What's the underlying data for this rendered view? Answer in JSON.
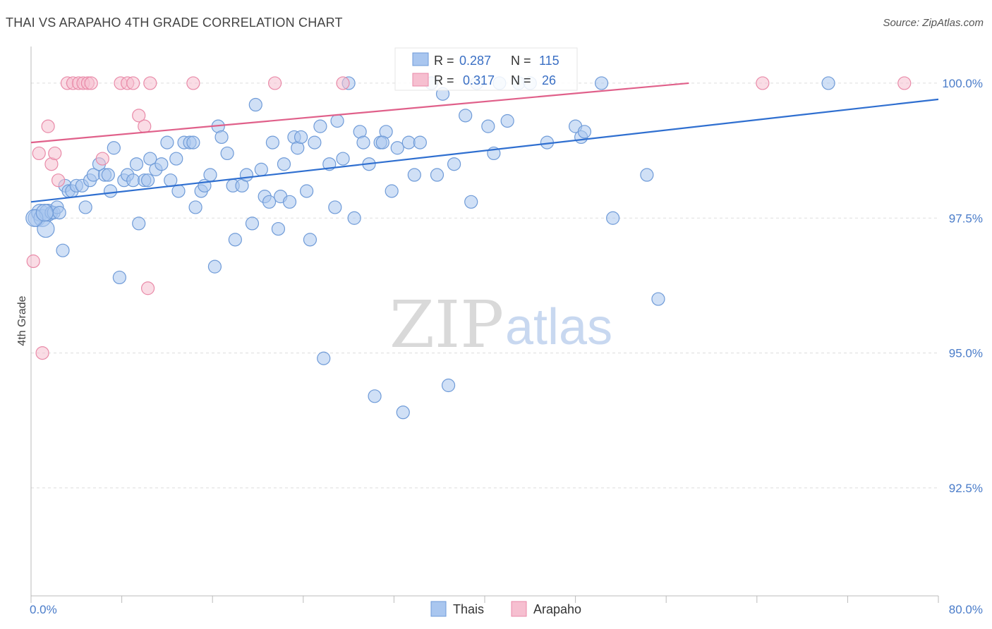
{
  "title": "THAI VS ARAPAHO 4TH GRADE CORRELATION CHART",
  "source": "Source: ZipAtlas.com",
  "watermark": {
    "zip": "ZIP",
    "atlas": "atlas"
  },
  "chart_data": {
    "type": "scatter",
    "xlabel": "",
    "ylabel": "4th Grade",
    "xlim": [
      0,
      80
    ],
    "ylim": [
      90.5,
      100.6
    ],
    "x_tick_labels": [
      {
        "value": 0,
        "label": "0.0%"
      },
      {
        "value": 80,
        "label": "80.0%"
      }
    ],
    "y_ticks": [
      {
        "value": 100.0,
        "label": "100.0%"
      },
      {
        "value": 97.5,
        "label": "97.5%"
      },
      {
        "value": 95.0,
        "label": "95.0%"
      },
      {
        "value": 92.5,
        "label": "92.5%"
      }
    ],
    "grid": true,
    "legend_top": [
      {
        "series": "Thais",
        "r_label": "R =",
        "r": "0.287",
        "n_label": "N =",
        "n": "115"
      },
      {
        "series": "Arapaho",
        "r_label": "R =",
        "r": "0.317",
        "n_label": "N =",
        "n": "26"
      }
    ],
    "legend_bottom": [
      "Thais",
      "Arapaho"
    ],
    "colors": {
      "thais_fill": "#a9c6ef",
      "thais_stroke": "#6f9bd8",
      "thais_line": "#2f6fd0",
      "arapaho_fill": "#f6bfd0",
      "arapaho_stroke": "#e98aa8",
      "arapaho_line": "#e0608a"
    },
    "series": [
      {
        "name": "Thais",
        "trend": {
          "x": [
            0,
            80
          ],
          "y": [
            97.8,
            99.7
          ]
        },
        "points": [
          [
            0.5,
            97.5
          ],
          [
            0.8,
            97.6
          ],
          [
            1.0,
            97.5
          ],
          [
            1.3,
            97.3
          ],
          [
            1.5,
            97.6
          ],
          [
            1.8,
            97.6
          ],
          [
            2.0,
            97.6
          ],
          [
            2.3,
            97.7
          ],
          [
            2.8,
            96.9
          ],
          [
            3.0,
            98.1
          ],
          [
            3.3,
            98.0
          ],
          [
            3.6,
            98.0
          ],
          [
            4.0,
            98.1
          ],
          [
            4.5,
            98.1
          ],
          [
            4.8,
            97.7
          ],
          [
            5.2,
            98.2
          ],
          [
            5.5,
            98.3
          ],
          [
            6.0,
            98.5
          ],
          [
            6.5,
            98.3
          ],
          [
            7.0,
            98.0
          ],
          [
            7.3,
            98.8
          ],
          [
            7.8,
            96.4
          ],
          [
            8.2,
            98.2
          ],
          [
            8.5,
            98.3
          ],
          [
            9.0,
            98.2
          ],
          [
            9.3,
            98.5
          ],
          [
            9.5,
            97.4
          ],
          [
            10.0,
            98.2
          ],
          [
            10.3,
            98.2
          ],
          [
            10.5,
            98.6
          ],
          [
            11.0,
            98.4
          ],
          [
            11.5,
            98.5
          ],
          [
            12.0,
            98.9
          ],
          [
            12.3,
            98.2
          ],
          [
            12.8,
            98.6
          ],
          [
            13.0,
            98.0
          ],
          [
            13.5,
            98.9
          ],
          [
            14.0,
            98.9
          ],
          [
            14.3,
            98.9
          ],
          [
            14.5,
            97.7
          ],
          [
            15.0,
            98.0
          ],
          [
            15.3,
            98.1
          ],
          [
            15.8,
            98.3
          ],
          [
            16.2,
            96.6
          ],
          [
            16.5,
            99.2
          ],
          [
            16.8,
            99.0
          ],
          [
            17.3,
            98.7
          ],
          [
            17.8,
            98.1
          ],
          [
            18.0,
            97.1
          ],
          [
            18.6,
            98.1
          ],
          [
            19.0,
            98.3
          ],
          [
            19.5,
            97.4
          ],
          [
            19.8,
            99.6
          ],
          [
            20.3,
            98.4
          ],
          [
            20.6,
            97.9
          ],
          [
            21.0,
            97.8
          ],
          [
            21.3,
            98.9
          ],
          [
            21.8,
            97.3
          ],
          [
            22.0,
            97.9
          ],
          [
            22.3,
            98.5
          ],
          [
            22.8,
            97.8
          ],
          [
            23.2,
            99.0
          ],
          [
            23.5,
            98.8
          ],
          [
            23.8,
            99.0
          ],
          [
            24.3,
            98.0
          ],
          [
            24.6,
            97.1
          ],
          [
            25.0,
            98.9
          ],
          [
            25.5,
            99.2
          ],
          [
            25.8,
            94.9
          ],
          [
            26.3,
            98.5
          ],
          [
            26.8,
            97.7
          ],
          [
            27.0,
            99.3
          ],
          [
            27.5,
            98.6
          ],
          [
            28.0,
            100.0
          ],
          [
            28.5,
            97.5
          ],
          [
            29.0,
            99.1
          ],
          [
            29.3,
            98.9
          ],
          [
            29.8,
            98.5
          ],
          [
            30.3,
            94.2
          ],
          [
            30.8,
            98.9
          ],
          [
            31.3,
            99.1
          ],
          [
            31.8,
            98.0
          ],
          [
            32.3,
            98.8
          ],
          [
            32.8,
            93.9
          ],
          [
            33.3,
            98.9
          ],
          [
            33.8,
            98.3
          ],
          [
            34.3,
            98.9
          ],
          [
            35.3,
            100.0
          ],
          [
            35.8,
            98.3
          ],
          [
            36.3,
            99.8
          ],
          [
            36.8,
            94.4
          ],
          [
            37.3,
            98.5
          ],
          [
            38.3,
            99.4
          ],
          [
            38.8,
            97.8
          ],
          [
            39.3,
            100.0
          ],
          [
            40.3,
            99.2
          ],
          [
            40.8,
            98.7
          ],
          [
            41.3,
            100.0
          ],
          [
            42.0,
            99.3
          ],
          [
            43.0,
            100.0
          ],
          [
            44.0,
            100.0
          ],
          [
            45.5,
            98.9
          ],
          [
            48.0,
            99.2
          ],
          [
            48.5,
            99.0
          ],
          [
            48.8,
            99.1
          ],
          [
            50.3,
            100.0
          ],
          [
            51.3,
            97.5
          ],
          [
            54.3,
            98.3
          ],
          [
            55.3,
            96.0
          ],
          [
            70.3,
            100.0
          ],
          [
            0.3,
            97.5
          ],
          [
            1.2,
            97.6
          ],
          [
            2.5,
            97.6
          ],
          [
            6.8,
            98.3
          ],
          [
            31.0,
            98.9
          ]
        ]
      },
      {
        "name": "Arapaho",
        "trend": {
          "x": [
            0,
            58
          ],
          "y": [
            98.9,
            100.0
          ]
        },
        "points": [
          [
            0.2,
            96.7
          ],
          [
            0.7,
            98.7
          ],
          [
            1.0,
            95.0
          ],
          [
            1.5,
            99.2
          ],
          [
            1.8,
            98.5
          ],
          [
            2.1,
            98.7
          ],
          [
            2.4,
            98.2
          ],
          [
            3.2,
            100.0
          ],
          [
            3.7,
            100.0
          ],
          [
            4.2,
            100.0
          ],
          [
            4.6,
            100.0
          ],
          [
            5.0,
            100.0
          ],
          [
            5.3,
            100.0
          ],
          [
            6.3,
            98.6
          ],
          [
            7.9,
            100.0
          ],
          [
            8.5,
            100.0
          ],
          [
            9.0,
            100.0
          ],
          [
            9.5,
            99.4
          ],
          [
            10.0,
            99.2
          ],
          [
            10.3,
            96.2
          ],
          [
            10.5,
            100.0
          ],
          [
            14.3,
            100.0
          ],
          [
            21.5,
            100.0
          ],
          [
            27.5,
            100.0
          ],
          [
            64.5,
            100.0
          ],
          [
            77.0,
            100.0
          ]
        ]
      }
    ]
  }
}
